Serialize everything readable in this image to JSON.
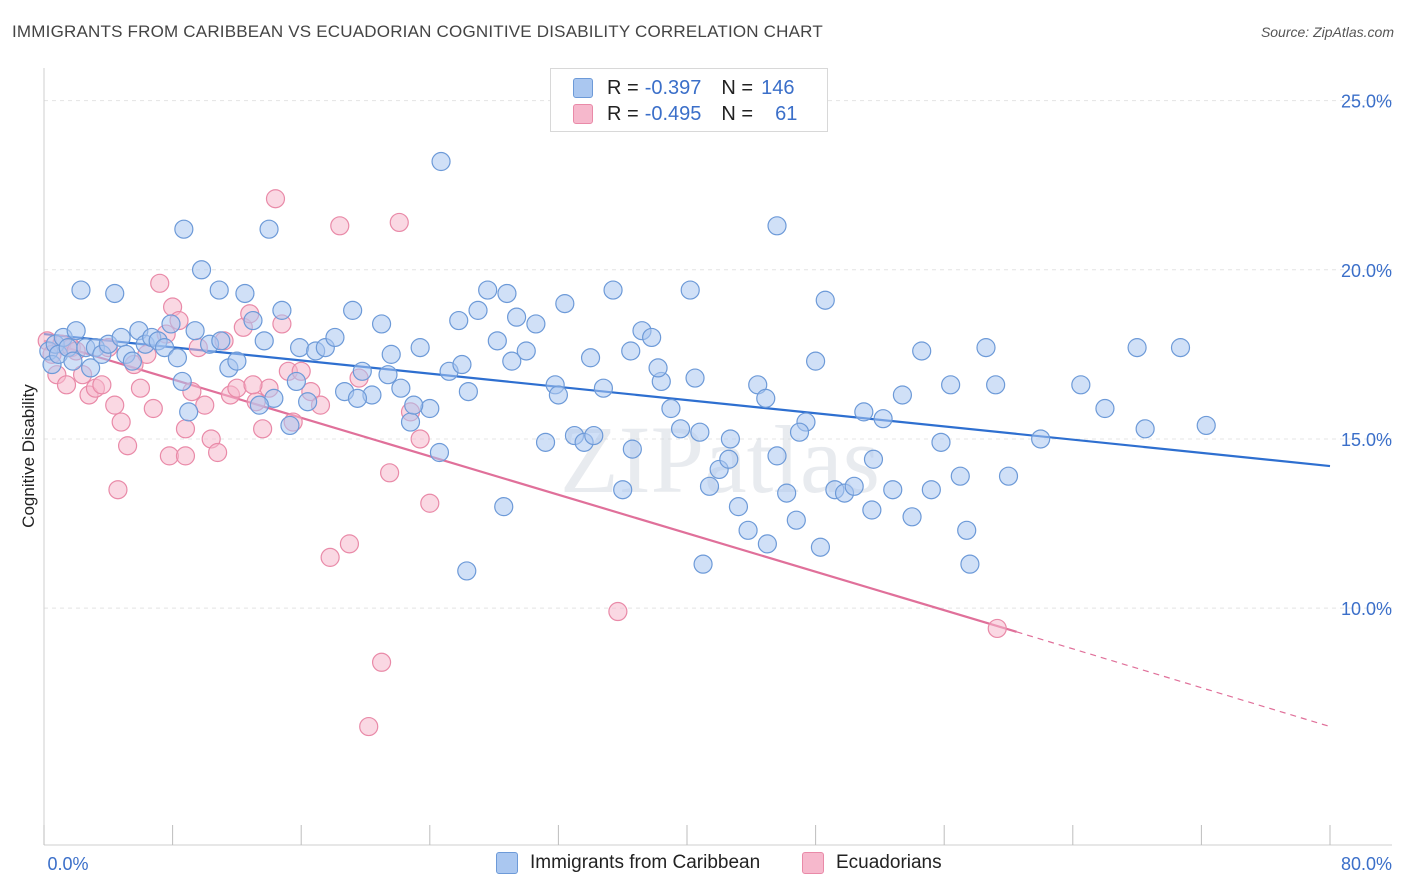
{
  "title": "IMMIGRANTS FROM CARIBBEAN VS ECUADORIAN COGNITIVE DISABILITY CORRELATION CHART",
  "source": "Source: ZipAtlas.com",
  "watermark": "ZIPatlas",
  "legend": {
    "rows": [
      {
        "r_label": "R =",
        "r_value": "-0.397",
        "n_label": "N =",
        "n_value": "146"
      },
      {
        "r_label": "R =",
        "r_value": "-0.495",
        "n_label": "N =",
        "n_value": "61"
      }
    ]
  },
  "colors": {
    "blue_fill": "#aac7f0",
    "blue_stroke": "#6d9ad8",
    "blue_line": "#2e6fd0",
    "pink_fill": "#f6b8cc",
    "pink_stroke": "#e98aa8",
    "pink_line": "#e0709a",
    "axis_text": "#3b6fc9",
    "grid": "#e4e4e4"
  },
  "chart_data": {
    "type": "scatter",
    "title": "IMMIGRANTS FROM CARIBBEAN VS ECUADORIAN COGNITIVE DISABILITY CORRELATION CHART",
    "xlabel": "",
    "ylabel": "Cognitive Disability",
    "xlim": [
      0,
      80
    ],
    "ylim": [
      3.0,
      26.2
    ],
    "x_tick_labels": [
      "0.0%",
      "80.0%"
    ],
    "y_ticks": [
      10,
      15,
      20,
      25
    ],
    "y_tick_labels": [
      "10.0%",
      "15.0%",
      "20.0%",
      "25.0%"
    ],
    "grid": true,
    "legend_position": "top-center",
    "series": [
      {
        "name": "Immigrants from Caribbean",
        "points": [
          [
            0.3,
            17.6
          ],
          [
            0.5,
            17.2
          ],
          [
            0.7,
            17.8
          ],
          [
            0.9,
            17.5
          ],
          [
            1.2,
            18.0
          ],
          [
            1.5,
            17.7
          ],
          [
            1.8,
            17.3
          ],
          [
            2.0,
            18.2
          ],
          [
            2.3,
            19.4
          ],
          [
            2.6,
            17.7
          ],
          [
            2.9,
            17.1
          ],
          [
            3.2,
            17.7
          ],
          [
            3.6,
            17.5
          ],
          [
            4.0,
            17.8
          ],
          [
            4.4,
            19.3
          ],
          [
            4.8,
            18.0
          ],
          [
            5.1,
            17.5
          ],
          [
            5.5,
            17.3
          ],
          [
            5.9,
            18.2
          ],
          [
            6.3,
            17.8
          ],
          [
            6.7,
            18.0
          ],
          [
            7.1,
            17.9
          ],
          [
            7.5,
            17.7
          ],
          [
            7.9,
            18.4
          ],
          [
            8.3,
            17.4
          ],
          [
            8.6,
            16.7
          ],
          [
            9.0,
            15.8
          ],
          [
            9.4,
            18.2
          ],
          [
            9.8,
            20.0
          ],
          [
            10.3,
            17.8
          ],
          [
            10.9,
            19.4
          ],
          [
            11.5,
            17.1
          ],
          [
            12.0,
            17.3
          ],
          [
            12.5,
            19.3
          ],
          [
            13.0,
            18.5
          ],
          [
            13.7,
            17.9
          ],
          [
            14.3,
            16.2
          ],
          [
            14.8,
            18.8
          ],
          [
            15.3,
            15.4
          ],
          [
            15.9,
            17.7
          ],
          [
            16.4,
            16.1
          ],
          [
            16.9,
            17.6
          ],
          [
            17.5,
            17.7
          ],
          [
            18.1,
            18.0
          ],
          [
            18.7,
            16.4
          ],
          [
            19.2,
            18.8
          ],
          [
            19.8,
            17.0
          ],
          [
            20.4,
            16.3
          ],
          [
            21.0,
            18.4
          ],
          [
            21.6,
            17.5
          ],
          [
            22.2,
            16.5
          ],
          [
            22.8,
            15.5
          ],
          [
            23.4,
            17.7
          ],
          [
            24.0,
            15.9
          ],
          [
            24.6,
            14.6
          ],
          [
            25.2,
            17.0
          ],
          [
            25.8,
            18.5
          ],
          [
            26.4,
            16.4
          ],
          [
            27.0,
            18.8
          ],
          [
            27.6,
            19.4
          ],
          [
            28.2,
            17.9
          ],
          [
            28.8,
            19.3
          ],
          [
            29.4,
            18.6
          ],
          [
            30.0,
            17.6
          ],
          [
            30.6,
            18.4
          ],
          [
            31.2,
            14.9
          ],
          [
            31.8,
            16.6
          ],
          [
            32.4,
            19.0
          ],
          [
            33.0,
            15.1
          ],
          [
            33.6,
            14.9
          ],
          [
            34.2,
            15.1
          ],
          [
            34.8,
            16.5
          ],
          [
            35.4,
            19.4
          ],
          [
            36.0,
            13.5
          ],
          [
            36.6,
            14.7
          ],
          [
            37.2,
            18.2
          ],
          [
            37.8,
            18.0
          ],
          [
            38.4,
            16.7
          ],
          [
            39.0,
            15.9
          ],
          [
            39.6,
            15.3
          ],
          [
            40.2,
            19.4
          ],
          [
            40.8,
            15.2
          ],
          [
            41.4,
            13.6
          ],
          [
            42.0,
            14.1
          ],
          [
            42.6,
            14.4
          ],
          [
            43.2,
            13.0
          ],
          [
            43.8,
            12.3
          ],
          [
            44.4,
            16.6
          ],
          [
            45.0,
            11.9
          ],
          [
            45.6,
            14.5
          ],
          [
            46.2,
            13.4
          ],
          [
            46.8,
            12.6
          ],
          [
            47.4,
            15.5
          ],
          [
            48.0,
            17.3
          ],
          [
            48.6,
            19.1
          ],
          [
            49.2,
            13.5
          ],
          [
            49.8,
            13.4
          ],
          [
            50.4,
            13.6
          ],
          [
            51.0,
            15.8
          ],
          [
            51.6,
            14.4
          ],
          [
            52.2,
            15.6
          ],
          [
            52.8,
            13.5
          ],
          [
            53.4,
            16.3
          ],
          [
            54.0,
            12.7
          ],
          [
            54.6,
            17.6
          ],
          [
            55.2,
            13.5
          ],
          [
            55.8,
            14.9
          ],
          [
            56.4,
            16.6
          ],
          [
            57.0,
            13.9
          ],
          [
            57.6,
            11.3
          ],
          [
            45.6,
            21.3
          ],
          [
            24.7,
            23.2
          ],
          [
            8.7,
            21.2
          ],
          [
            14.0,
            21.2
          ],
          [
            26.3,
            11.1
          ],
          [
            28.6,
            13.0
          ],
          [
            41.0,
            11.3
          ],
          [
            48.3,
            11.8
          ],
          [
            51.5,
            12.9
          ],
          [
            57.4,
            12.3
          ],
          [
            58.6,
            17.7
          ],
          [
            59.2,
            16.6
          ],
          [
            60.0,
            13.9
          ],
          [
            62.0,
            15.0
          ],
          [
            64.5,
            16.6
          ],
          [
            66.0,
            15.9
          ],
          [
            68.0,
            17.7
          ],
          [
            68.5,
            15.3
          ],
          [
            70.7,
            17.7
          ],
          [
            72.3,
            15.4
          ],
          [
            11.0,
            17.9
          ],
          [
            13.4,
            16.0
          ],
          [
            15.7,
            16.7
          ],
          [
            19.5,
            16.2
          ],
          [
            21.4,
            16.9
          ],
          [
            23.0,
            16.0
          ],
          [
            26.0,
            17.2
          ],
          [
            29.1,
            17.3
          ],
          [
            32.0,
            16.3
          ],
          [
            34.0,
            17.4
          ],
          [
            36.5,
            17.6
          ],
          [
            38.2,
            17.1
          ],
          [
            40.5,
            16.8
          ],
          [
            42.7,
            15.0
          ],
          [
            44.9,
            16.2
          ],
          [
            47.0,
            15.2
          ]
        ]
      },
      {
        "name": "Ecuadorians",
        "points": [
          [
            0.2,
            17.9
          ],
          [
            0.5,
            17.5
          ],
          [
            0.8,
            16.9
          ],
          [
            1.1,
            17.8
          ],
          [
            1.4,
            16.6
          ],
          [
            1.7,
            17.7
          ],
          [
            2.0,
            17.6
          ],
          [
            2.4,
            16.9
          ],
          [
            2.8,
            16.3
          ],
          [
            3.2,
            16.5
          ],
          [
            3.6,
            16.6
          ],
          [
            4.0,
            17.7
          ],
          [
            4.4,
            16.0
          ],
          [
            4.8,
            15.5
          ],
          [
            5.2,
            14.8
          ],
          [
            5.6,
            17.2
          ],
          [
            6.0,
            16.5
          ],
          [
            6.4,
            17.5
          ],
          [
            6.8,
            15.9
          ],
          [
            7.2,
            19.6
          ],
          [
            7.6,
            18.1
          ],
          [
            8.0,
            18.9
          ],
          [
            8.4,
            18.5
          ],
          [
            8.8,
            15.3
          ],
          [
            9.2,
            16.4
          ],
          [
            9.6,
            17.7
          ],
          [
            10.0,
            16.0
          ],
          [
            10.4,
            15.0
          ],
          [
            10.8,
            14.6
          ],
          [
            11.2,
            17.9
          ],
          [
            11.6,
            16.3
          ],
          [
            12.0,
            16.5
          ],
          [
            12.4,
            18.3
          ],
          [
            12.8,
            18.7
          ],
          [
            13.2,
            16.1
          ],
          [
            13.6,
            15.3
          ],
          [
            14.0,
            16.5
          ],
          [
            14.4,
            22.1
          ],
          [
            14.8,
            18.4
          ],
          [
            15.2,
            17.0
          ],
          [
            16.0,
            17.0
          ],
          [
            16.6,
            16.4
          ],
          [
            17.2,
            16.0
          ],
          [
            17.8,
            11.5
          ],
          [
            18.4,
            21.3
          ],
          [
            19.0,
            11.9
          ],
          [
            19.6,
            16.8
          ],
          [
            20.2,
            6.5
          ],
          [
            21.0,
            8.4
          ],
          [
            21.5,
            14.0
          ],
          [
            22.1,
            21.4
          ],
          [
            22.8,
            15.8
          ],
          [
            23.4,
            15.0
          ],
          [
            24.0,
            13.1
          ],
          [
            4.6,
            13.5
          ],
          [
            7.8,
            14.5
          ],
          [
            8.8,
            14.5
          ],
          [
            13.0,
            16.6
          ],
          [
            15.5,
            15.5
          ],
          [
            35.7,
            9.9
          ],
          [
            59.3,
            9.4
          ]
        ]
      }
    ],
    "trend_lines": [
      {
        "series": "Immigrants from Caribbean",
        "x": [
          0,
          80
        ],
        "y": [
          18.1,
          14.2
        ]
      },
      {
        "series": "Ecuadorians",
        "x": [
          0,
          60.5
        ],
        "y": [
          17.9,
          9.3
        ],
        "dashed_to": [
          80,
          6.5
        ]
      }
    ]
  },
  "bottom_legend": [
    {
      "label": "Immigrants from Caribbean"
    },
    {
      "label": "Ecuadorians"
    }
  ]
}
